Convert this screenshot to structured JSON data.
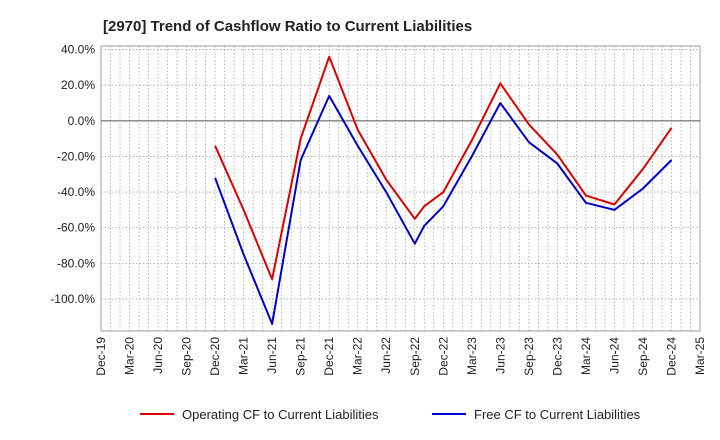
{
  "chart_data": {
    "type": "line",
    "title": "[2970]  Trend of Cashflow Ratio to Current Liabilities",
    "xlabel": "",
    "ylabel": "",
    "x_ticks": [
      "Dec-19",
      "Mar-20",
      "Jun-20",
      "Sep-20",
      "Dec-20",
      "Mar-21",
      "Jun-21",
      "Sep-21",
      "Dec-21",
      "Mar-22",
      "Jun-22",
      "Sep-22",
      "Dec-22",
      "Mar-23",
      "Jun-23",
      "Sep-23",
      "Dec-23",
      "Mar-24",
      "Jun-24",
      "Sep-24",
      "Dec-24",
      "Mar-25"
    ],
    "y_ticks": [
      "40.0%",
      "20.0%",
      "0.0%",
      "-20.0%",
      "-40.0%",
      "-60.0%",
      "-80.0%",
      "-100.0%"
    ],
    "y_tick_values": [
      40,
      20,
      0,
      -20,
      -40,
      -60,
      -80,
      -100
    ],
    "ylim": [
      -118,
      42
    ],
    "grid": true,
    "legend_position": "bottom",
    "x": [
      "Dec-20",
      "Mar-21",
      "Jun-21",
      "Sep-21",
      "Dec-21",
      "Mar-22",
      "Jun-22",
      "Sep-22",
      "Oct-22",
      "Dec-22",
      "Mar-23",
      "Jun-23",
      "Sep-23",
      "Dec-23",
      "Mar-24",
      "Jun-24",
      "Sep-24",
      "Dec-24"
    ],
    "series": [
      {
        "name": "Operating CF to Current Liabilities",
        "color": "#e00000",
        "x_index": [
          4,
          5,
          6,
          7,
          8,
          9,
          10,
          11,
          11.33,
          12,
          13,
          14,
          15,
          16,
          17,
          18,
          19,
          20
        ],
        "values": [
          -14,
          -50,
          -89,
          -10,
          36,
          -5,
          -33,
          -55,
          -48,
          -40,
          -11,
          21,
          -2,
          -19,
          -42,
          -47,
          -27,
          -4
        ]
      },
      {
        "name": "Free CF to Current Liabilities",
        "color": "#0000d0",
        "x_index": [
          4,
          5,
          6,
          7,
          8,
          9,
          10,
          11,
          11.33,
          12,
          13,
          14,
          15,
          16,
          17,
          18,
          19,
          20
        ],
        "values": [
          -32,
          -75,
          -114,
          -22,
          14,
          -14,
          -40,
          -69,
          -59,
          -48,
          -20,
          10,
          -12,
          -24,
          -46,
          -50,
          -38,
          -22
        ]
      }
    ]
  }
}
